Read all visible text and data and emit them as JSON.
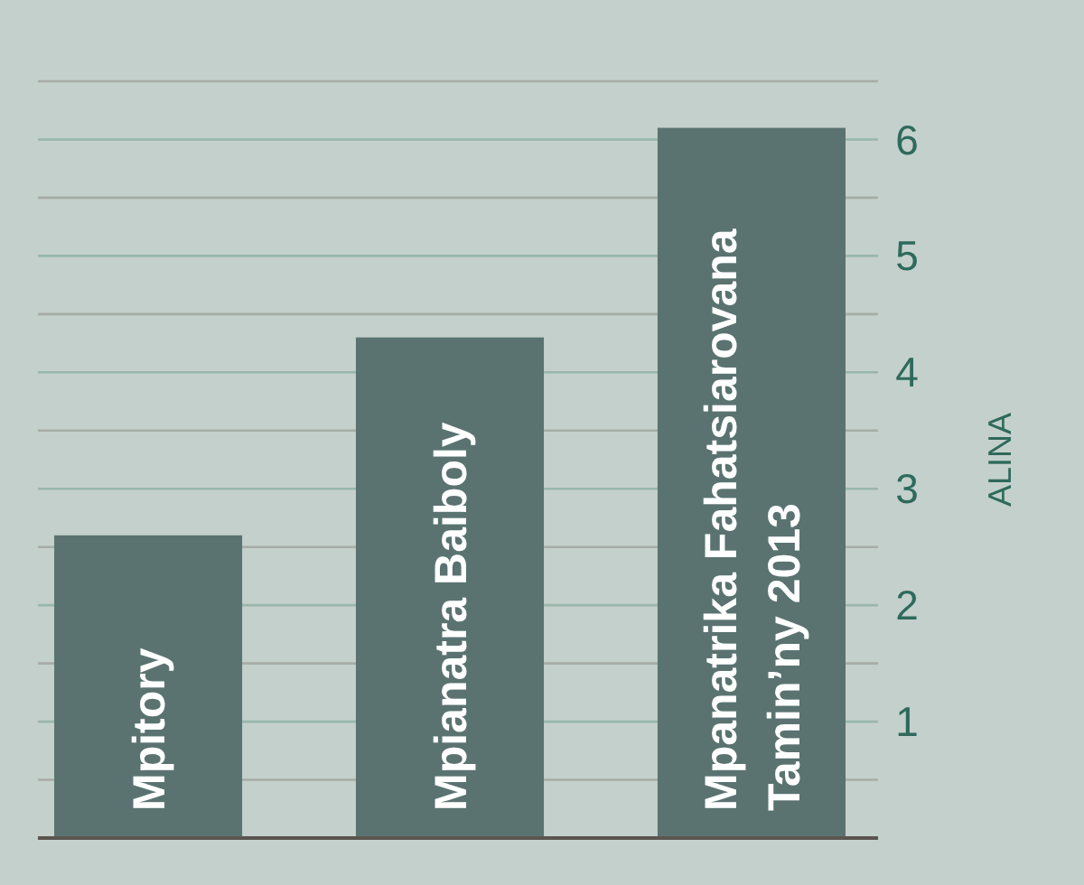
{
  "chart_data": {
    "type": "bar",
    "ylabel": "ALINA",
    "categories": [
      "Mpitory",
      "Mpianatra Baiboly",
      "Mpanatrika Fahatsiarovana Tamin’ny 2013"
    ],
    "values": [
      2.6,
      4.3,
      6.1
    ],
    "color": "#5a7371",
    "ylim": [
      0,
      6.5
    ],
    "yticks": [
      {
        "value": 0.5,
        "label": null
      },
      1,
      {
        "value": 1.5,
        "label": null
      },
      2,
      {
        "value": 2.5,
        "label": null
      },
      3,
      {
        "value": 3.5,
        "label": null
      },
      4,
      {
        "value": 4.5,
        "label": null
      },
      5,
      {
        "value": 5.5,
        "label": null
      },
      6,
      {
        "value": 6.5,
        "label": null
      }
    ],
    "grid": "y"
  }
}
